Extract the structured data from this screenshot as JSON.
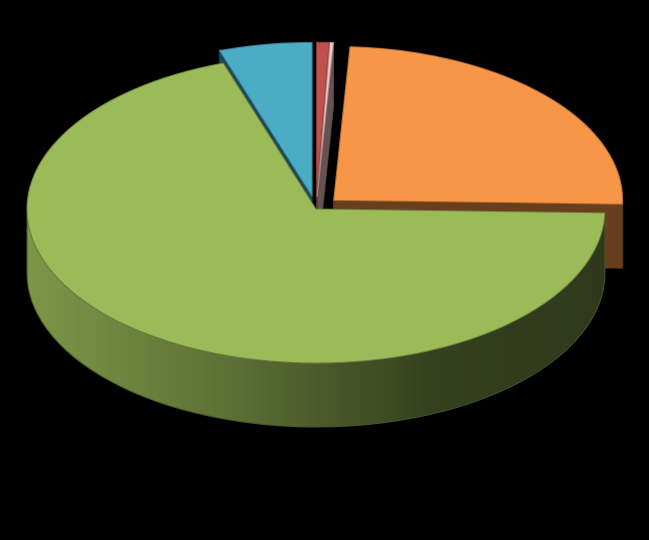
{
  "chart_data": {
    "type": "pie",
    "style": "3d-exploded",
    "title": "",
    "legend": "none",
    "data_labels": "none",
    "slices": [
      {
        "value": 0.7,
        "color": "#c0504d"
      },
      {
        "value": 0.2,
        "color": "#f2c4c4"
      },
      {
        "value": 24.5,
        "color": "#f79646"
      },
      {
        "value": 69.4,
        "color": "#9bbb59"
      },
      {
        "value": 5.2,
        "color": "#4bacc6"
      }
    ]
  }
}
